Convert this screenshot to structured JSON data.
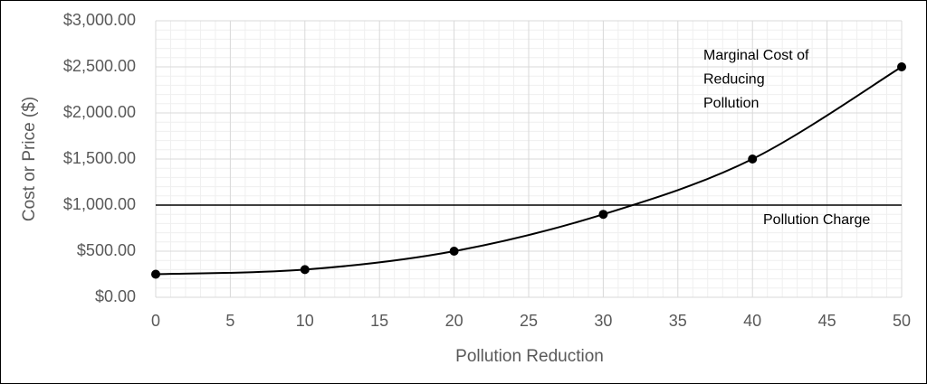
{
  "chart_data": {
    "type": "line",
    "x_label": "Pollution Reduction",
    "y_label": "Cost or Price ($)",
    "x": [
      0,
      10,
      20,
      30,
      40,
      50
    ],
    "series": [
      {
        "color": "#000000",
        "values": [
          250,
          300,
          500,
          900,
          1500,
          2500
        ]
      }
    ],
    "hlines": [
      {
        "value": 1000,
        "label": "Pollution Charge",
        "color": "#000000"
      }
    ],
    "annotations": [
      {
        "lines": [
          "Marginal Cost of",
          "Reducing",
          "Pollution"
        ]
      }
    ],
    "xlim": [
      0,
      50
    ],
    "xticks": [
      0,
      5,
      10,
      15,
      20,
      25,
      30,
      35,
      40,
      45,
      50
    ],
    "ylim": [
      0,
      3000
    ],
    "yticks": [
      {
        "value": 0,
        "label": "$0.00"
      },
      {
        "value": 500,
        "label": "$500.00"
      },
      {
        "value": 1000,
        "label": "$1,000.00"
      },
      {
        "value": 1500,
        "label": "$1,500.00"
      },
      {
        "value": 2000,
        "label": "$2,000.00"
      },
      {
        "value": 2500,
        "label": "$2,500.00"
      },
      {
        "value": 3000,
        "label": "$3,000.00"
      }
    ],
    "grid": true,
    "minor_grid": true
  }
}
